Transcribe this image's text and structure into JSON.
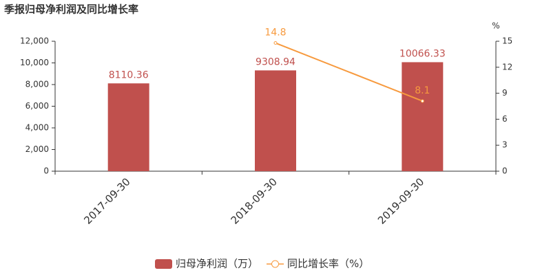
{
  "chart_data": {
    "type": "bar",
    "title": "季报归母净利润及同比增长率",
    "categories": [
      "2017-09-30",
      "2018-09-30",
      "2019-09-30"
    ],
    "series": [
      {
        "name": "归母净利润（万）",
        "color": "#c0504d",
        "type": "bar",
        "values": [
          8110.36,
          9308.94,
          10066.33
        ]
      },
      {
        "name": "同比增长率（%）",
        "color": "#f79a3e",
        "type": "line",
        "axis": "y2",
        "values": [
          null,
          14.8,
          8.1
        ]
      }
    ],
    "ylim": [
      0,
      12000
    ],
    "yticks": [
      0,
      {
        "value": 2000,
        "label": "2,000"
      },
      {
        "value": 4000,
        "label": "4,000"
      },
      {
        "value": 6000,
        "label": "6,000"
      },
      {
        "value": 8000,
        "label": "8,000"
      },
      {
        "value": 10000,
        "label": "10,000"
      },
      {
        "value": 12000,
        "label": "12,000"
      }
    ],
    "y2label": "%",
    "y2lim": [
      0,
      15
    ],
    "y2ticks": [
      0,
      3,
      6,
      9,
      12,
      15
    ],
    "grid": false,
    "legend": "bottom"
  }
}
